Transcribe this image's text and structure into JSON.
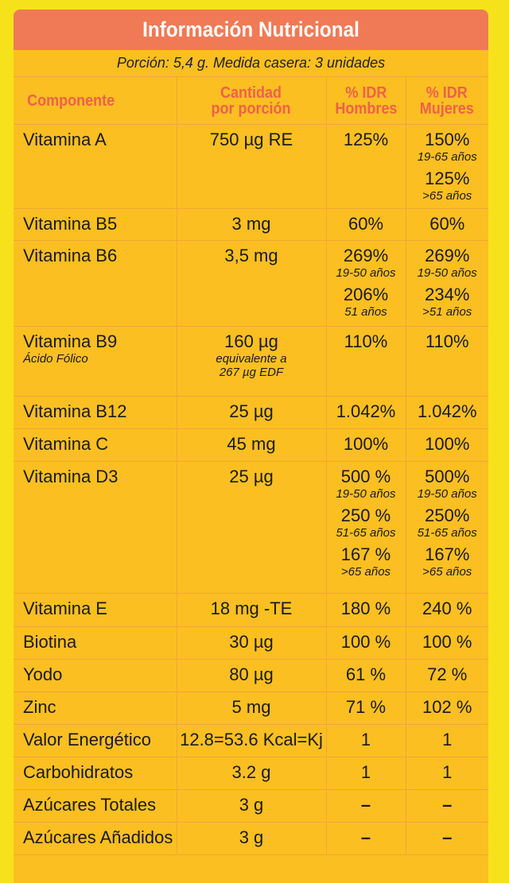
{
  "title": "Información Nutricional",
  "portion": "Porción: 5,4 g. Medida casera: 3 unidades",
  "headers": {
    "component": "Componente",
    "amount_line1": "Cantidad",
    "amount_line2": "por porción",
    "men_line1": "% IDR",
    "men_line2": "Hombres",
    "women_line1": "% IDR",
    "women_line2": "Mujeres"
  },
  "rows": [
    {
      "name": "Vitamina A",
      "amount": "750 µg RE",
      "men": [
        "125%"
      ],
      "women": [
        "150%",
        "125%"
      ],
      "women_notes": [
        "19-65 años",
        ">65 años"
      ]
    },
    {
      "name": "Vitamina B5",
      "amount": "3 mg",
      "men": [
        "60%"
      ],
      "women": [
        "60%"
      ]
    },
    {
      "name": "Vitamina B6",
      "amount": "3,5 mg",
      "men": [
        "269%",
        "206%"
      ],
      "men_notes": [
        "19-50 años",
        "51 años"
      ],
      "women": [
        "269%",
        "234%"
      ],
      "women_notes": [
        "19-50 años",
        ">51 años"
      ]
    },
    {
      "name": "Vitamina B9",
      "name_note": "Ácido Fólico",
      "amount": "160 µg",
      "amount_note1": "equivalente a",
      "amount_note2": "267 µg EDF",
      "men": [
        "110%"
      ],
      "women": [
        "110%"
      ]
    },
    {
      "name": "Vitamina B12",
      "amount": "25 µg",
      "men": [
        "1.042%"
      ],
      "women": [
        "1.042%"
      ]
    },
    {
      "name": "Vitamina C",
      "amount": "45 mg",
      "men": [
        "100%"
      ],
      "women": [
        "100%"
      ]
    },
    {
      "name": "Vitamina D3",
      "amount": "25 µg",
      "men": [
        "500 %",
        "250 %",
        "167 %"
      ],
      "men_notes": [
        "19-50 años",
        "51-65 años",
        ">65 años"
      ],
      "women": [
        "500%",
        "250%",
        "167%"
      ],
      "women_notes": [
        "19-50 años",
        "51-65 años",
        ">65 años"
      ]
    },
    {
      "name": "Vitamina E",
      "amount": "18 mg -TE",
      "men": [
        "180 %"
      ],
      "women": [
        "240 %"
      ]
    },
    {
      "name": "Biotina",
      "amount": "30 µg",
      "men": [
        "100 %"
      ],
      "women": [
        "100 %"
      ]
    },
    {
      "name": "Yodo",
      "amount": "80 µg",
      "men": [
        "61 %"
      ],
      "women": [
        "72 %"
      ]
    },
    {
      "name": "Zinc",
      "amount": "5 mg",
      "men": [
        "71 %"
      ],
      "women": [
        "102 %"
      ]
    },
    {
      "name": "Valor Energético",
      "amount": "12.8=53.6 Kcal=Kj",
      "men": [
        "1"
      ],
      "women": [
        "1"
      ]
    },
    {
      "name": "Carbohidratos",
      "amount": "3.2 g",
      "men": [
        "1"
      ],
      "women": [
        "1"
      ]
    },
    {
      "name": "Azúcares Totales",
      "amount": "3 g",
      "men": [
        "–"
      ],
      "women": [
        "–"
      ]
    },
    {
      "name": "Azúcares Añadidos",
      "amount": "3 g",
      "men": [
        "–"
      ],
      "women": [
        "–"
      ]
    }
  ],
  "colors": {
    "background": "#f6e21a",
    "panel": "#fbbf22",
    "title_bar": "#f07a56",
    "header_text": "#f0604a"
  }
}
